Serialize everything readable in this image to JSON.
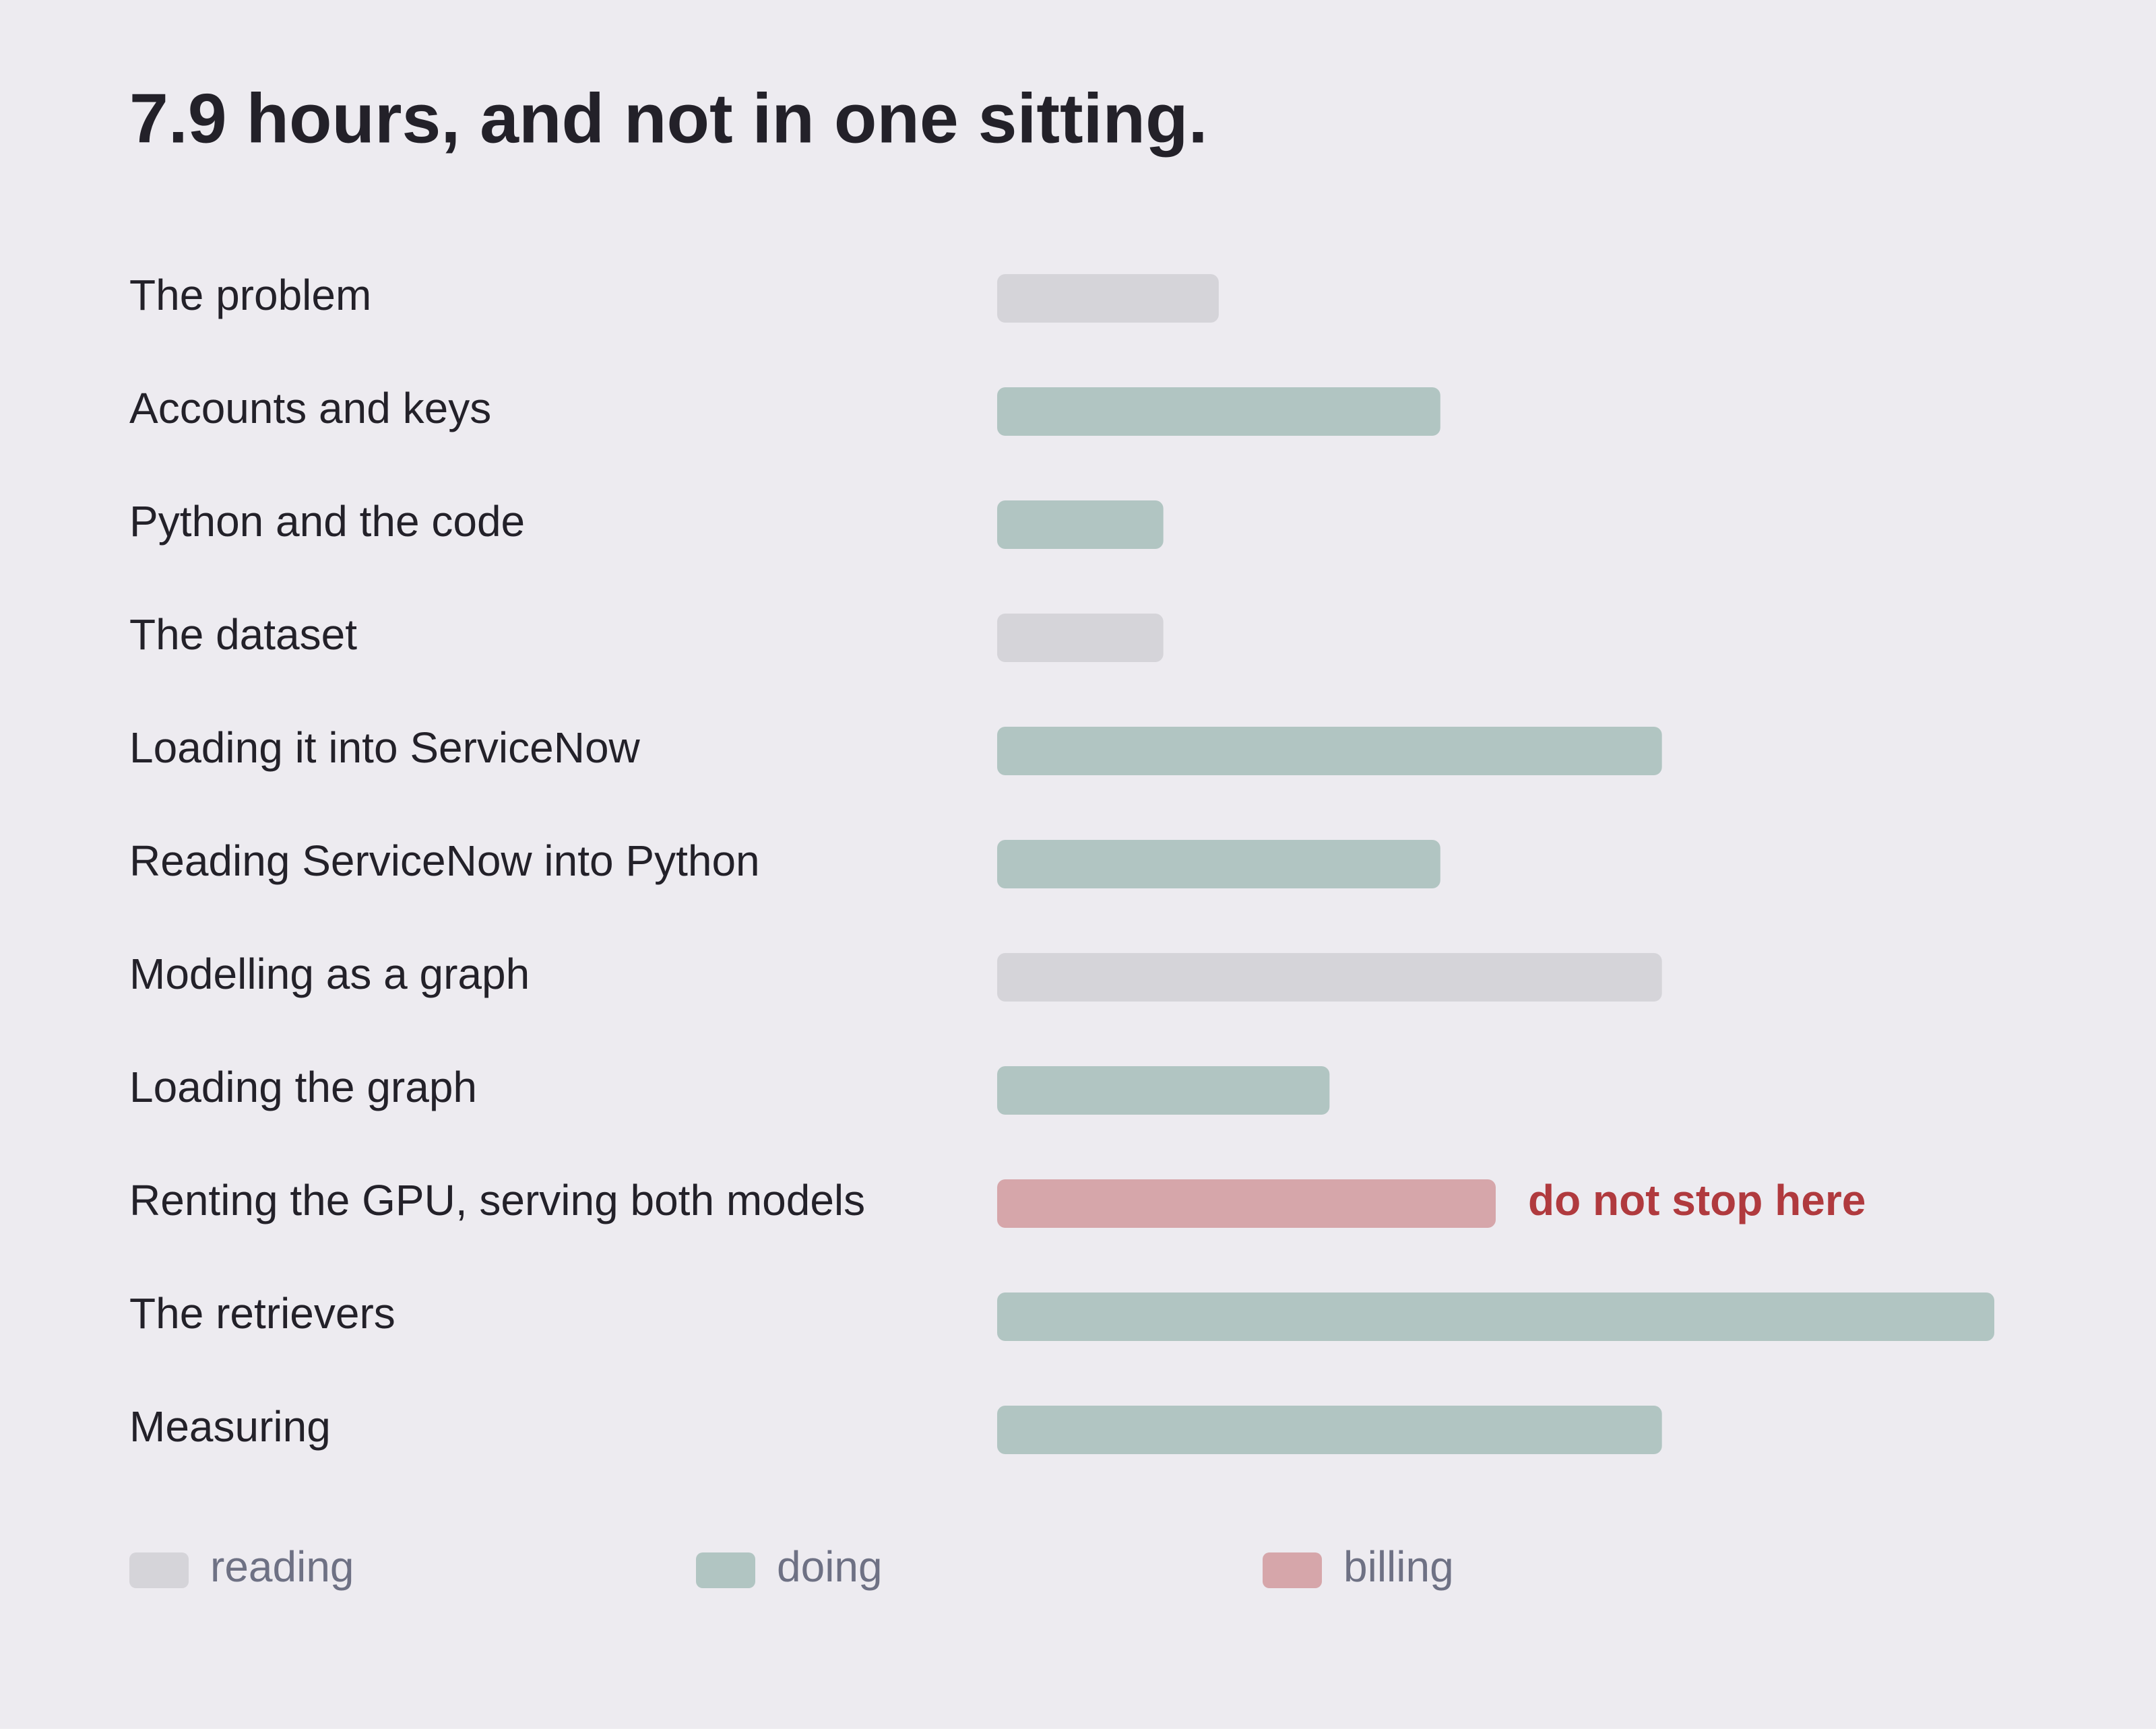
{
  "chart_data": {
    "type": "bar",
    "orientation": "horizontal",
    "title": "7.9 hours, and not in one sitting.",
    "categories": [
      "The problem",
      "Accounts and keys",
      "Python and the code",
      "The dataset",
      "Loading it into ServiceNow",
      "Reading ServiceNow into Python",
      "Modelling as a graph",
      "Loading the graph",
      "Renting the GPU, serving both models",
      "The retrievers",
      "Measuring"
    ],
    "series": [
      {
        "name": "reading",
        "color": "#d5d4d9",
        "values": [
          20,
          null,
          null,
          15,
          null,
          null,
          60,
          null,
          null,
          null,
          null
        ]
      },
      {
        "name": "doing",
        "color": "#b1c5c2",
        "values": [
          null,
          40,
          15,
          null,
          60,
          40,
          null,
          30,
          null,
          90,
          60
        ]
      },
      {
        "name": "billing",
        "color": "#d6a6aa",
        "values": [
          null,
          null,
          null,
          null,
          null,
          null,
          null,
          null,
          45,
          null,
          null
        ],
        "annotation": "do not stop here",
        "annotation_color": "#b03a3e"
      }
    ]
  }
}
